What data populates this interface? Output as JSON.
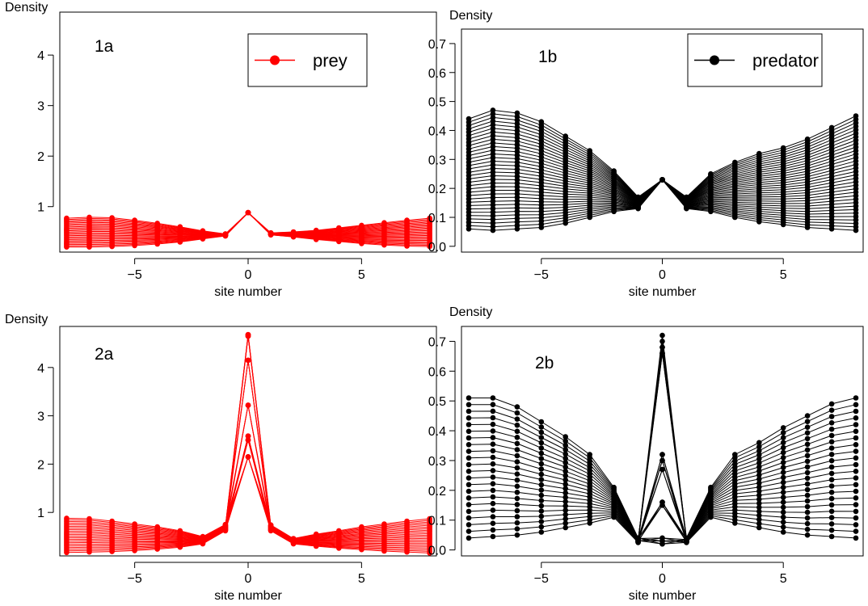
{
  "chart_data": [
    {
      "panel": "1a",
      "type": "line",
      "label": "1a",
      "ylabel": "Density",
      "xlabel": "site number",
      "xlim": [
        -8.3,
        8.3
      ],
      "ylim": [
        0.1,
        4.85
      ],
      "xticks": [
        -5,
        0,
        5
      ],
      "yticks": [
        1,
        2,
        3,
        4
      ],
      "legend": {
        "text": "prey",
        "placement": "top-right"
      },
      "color": "#ff0000",
      "x": [
        -8,
        -7,
        -6,
        -5,
        -4,
        -3,
        -2,
        -1,
        0,
        1,
        2,
        3,
        4,
        5,
        6,
        7,
        8
      ],
      "peak": 0.88,
      "envelope": {
        "left_upper": [
          0.77,
          0.79,
          0.78,
          0.73,
          0.67,
          0.6,
          0.52,
          0.46
        ],
        "left_lower": [
          0.2,
          0.2,
          0.21,
          0.23,
          0.26,
          0.3,
          0.36,
          0.42
        ],
        "right_upper": [
          0.48,
          0.5,
          0.53,
          0.58,
          0.63,
          0.68,
          0.73,
          0.77
        ],
        "right_lower": [
          0.44,
          0.4,
          0.35,
          0.31,
          0.27,
          0.24,
          0.22,
          0.21
        ]
      },
      "series_count": 24
    },
    {
      "panel": "1b",
      "type": "line",
      "label": "1b",
      "ylabel": "Density",
      "xlabel": "site number",
      "xlim": [
        -8.3,
        8.3
      ],
      "ylim": [
        -0.02,
        0.75
      ],
      "xticks": [
        -5,
        0,
        5
      ],
      "yticks": [
        0.0,
        0.1,
        0.2,
        0.3,
        0.4,
        0.5,
        0.6,
        0.7
      ],
      "yticklabels": [
        "0.0",
        "0.1",
        "0.2",
        "0.3",
        "0.4",
        "0.5",
        "0.6",
        "0.7"
      ],
      "legend": {
        "text": "predator",
        "placement": "top-right"
      },
      "color": "#000000",
      "x": [
        -8,
        -7,
        -6,
        -5,
        -4,
        -3,
        -2,
        -1,
        0,
        1,
        2,
        3,
        4,
        5,
        6,
        7,
        8
      ],
      "peak": 0.23,
      "envelope": {
        "left_upper": [
          0.44,
          0.47,
          0.46,
          0.43,
          0.38,
          0.33,
          0.26,
          0.17
        ],
        "left_lower": [
          0.06,
          0.055,
          0.06,
          0.065,
          0.08,
          0.1,
          0.12,
          0.13
        ],
        "right_upper": [
          0.17,
          0.25,
          0.29,
          0.32,
          0.34,
          0.37,
          0.41,
          0.45
        ],
        "right_lower": [
          0.13,
          0.12,
          0.1,
          0.085,
          0.075,
          0.065,
          0.06,
          0.055
        ]
      },
      "series_count": 34
    },
    {
      "panel": "2a",
      "type": "line",
      "label": "2a",
      "ylabel": "Density",
      "xlabel": "site number",
      "xlim": [
        -8.3,
        8.3
      ],
      "ylim": [
        0.1,
        4.85
      ],
      "xticks": [
        -5,
        0,
        5
      ],
      "yticks": [
        1,
        2,
        3,
        4
      ],
      "color": "#ff0000",
      "x": [
        -8,
        -7,
        -6,
        -5,
        -4,
        -3,
        -2,
        -1,
        0,
        1,
        2,
        3,
        4,
        5,
        6,
        7,
        8
      ],
      "peaks": [
        2.15,
        2.5,
        2.58,
        3.22,
        4.15,
        4.68,
        4.65
      ],
      "envelope": {
        "left_upper": [
          0.88,
          0.87,
          0.82,
          0.76,
          0.7,
          0.62,
          0.5,
          0.75
        ],
        "left_lower": [
          0.17,
          0.18,
          0.19,
          0.21,
          0.24,
          0.28,
          0.35,
          0.62
        ],
        "right_upper": [
          0.74,
          0.46,
          0.55,
          0.62,
          0.7,
          0.76,
          0.82,
          0.87
        ],
        "right_lower": [
          0.62,
          0.35,
          0.3,
          0.26,
          0.23,
          0.2,
          0.18,
          0.16
        ]
      },
      "series_count": 22
    },
    {
      "panel": "2b",
      "type": "line",
      "label": "2b",
      "ylabel": "Density",
      "xlabel": "site number",
      "xlim": [
        -8.3,
        8.3
      ],
      "ylim": [
        -0.02,
        0.75
      ],
      "xticks": [
        -5,
        0,
        5
      ],
      "yticks": [
        0.0,
        0.1,
        0.2,
        0.3,
        0.4,
        0.5,
        0.6,
        0.7
      ],
      "yticklabels": [
        "0.0",
        "0.1",
        "0.2",
        "0.3",
        "0.4",
        "0.5",
        "0.6",
        "0.7"
      ],
      "color": "#000000",
      "x": [
        -8,
        -7,
        -6,
        -5,
        -4,
        -3,
        -2,
        -1,
        0,
        1,
        2,
        3,
        4,
        5,
        6,
        7,
        8
      ],
      "peaks": [
        0.02,
        0.03,
        0.04,
        0.15,
        0.16,
        0.27,
        0.3,
        0.32,
        0.66,
        0.68,
        0.7,
        0.72
      ],
      "envelope": {
        "left_upper": [
          0.51,
          0.51,
          0.48,
          0.43,
          0.38,
          0.32,
          0.21,
          0.04
        ],
        "left_lower": [
          0.04,
          0.045,
          0.05,
          0.06,
          0.075,
          0.09,
          0.11,
          0.025
        ],
        "right_upper": [
          0.04,
          0.21,
          0.32,
          0.36,
          0.41,
          0.45,
          0.49,
          0.51
        ],
        "right_lower": [
          0.025,
          0.11,
          0.09,
          0.075,
          0.06,
          0.05,
          0.045,
          0.04
        ]
      },
      "series_count": 22
    }
  ]
}
